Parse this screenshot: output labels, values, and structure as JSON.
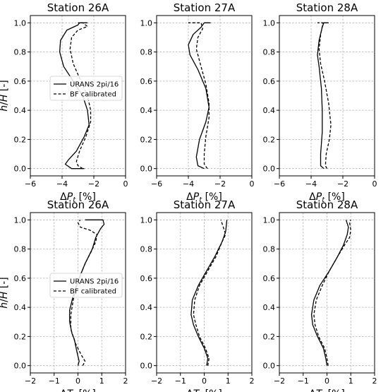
{
  "chart_data": [
    {
      "type": "line",
      "title": "Station 26A",
      "xlabel": "ΔP_t [%]",
      "ylabel": "h/H [-]",
      "xlim": [
        -6,
        0
      ],
      "ylim": [
        -0.05,
        1.05
      ],
      "xticks": [
        -6,
        -4,
        -2,
        0
      ],
      "yticks": [
        0.0,
        0.2,
        0.4,
        0.6,
        0.8,
        1.0
      ],
      "grid": true,
      "legend": "center-left",
      "series": [
        {
          "name": "URANS 2pi/16",
          "style": "solid",
          "points": [
            [
              -2.6,
              0.0
            ],
            [
              -3.4,
              0.0
            ],
            [
              -3.8,
              0.03
            ],
            [
              -3.6,
              0.06
            ],
            [
              -3.1,
              0.12
            ],
            [
              -2.6,
              0.22
            ],
            [
              -2.3,
              0.3
            ],
            [
              -2.4,
              0.4
            ],
            [
              -2.7,
              0.5
            ],
            [
              -3.3,
              0.6
            ],
            [
              -3.9,
              0.7
            ],
            [
              -4.15,
              0.8
            ],
            [
              -4.1,
              0.88
            ],
            [
              -3.7,
              0.95
            ],
            [
              -3.0,
              0.985
            ],
            [
              -2.9,
              1.0
            ],
            [
              -2.4,
              1.0
            ]
          ]
        },
        {
          "name": "BF calibrated",
          "style": "dashed",
          "points": [
            [
              -2.7,
              0.0
            ],
            [
              -3.0,
              0.02
            ],
            [
              -3.1,
              0.05
            ],
            [
              -2.9,
              0.12
            ],
            [
              -2.5,
              0.22
            ],
            [
              -2.2,
              0.32
            ],
            [
              -2.2,
              0.4
            ],
            [
              -2.4,
              0.5
            ],
            [
              -2.9,
              0.62
            ],
            [
              -3.3,
              0.72
            ],
            [
              -3.5,
              0.82
            ],
            [
              -3.4,
              0.9
            ],
            [
              -3.0,
              0.95
            ],
            [
              -2.4,
              0.975
            ],
            [
              -2.7,
              1.0
            ],
            [
              -3.0,
              1.0
            ]
          ]
        }
      ]
    },
    {
      "type": "line",
      "title": "Station 27A",
      "xlabel": "ΔP_t [%]",
      "ylabel": "",
      "xlim": [
        -6,
        0
      ],
      "ylim": [
        -0.05,
        1.05
      ],
      "xticks": [
        -6,
        -4,
        -2,
        0
      ],
      "yticks": [
        0.0,
        0.2,
        0.4,
        0.6,
        0.8,
        1.0
      ],
      "grid": true,
      "legend": "",
      "series": [
        {
          "name": "",
          "style": "solid",
          "points": [
            [
              -3.0,
              0.0
            ],
            [
              -3.4,
              0.02
            ],
            [
              -3.5,
              0.08
            ],
            [
              -3.3,
              0.2
            ],
            [
              -2.9,
              0.32
            ],
            [
              -2.7,
              0.42
            ],
            [
              -2.9,
              0.55
            ],
            [
              -3.4,
              0.68
            ],
            [
              -3.9,
              0.78
            ],
            [
              -4.0,
              0.85
            ],
            [
              -3.7,
              0.92
            ],
            [
              -3.2,
              0.97
            ],
            [
              -3.0,
              1.0
            ],
            [
              -2.6,
              1.0
            ]
          ]
        },
        {
          "name": "",
          "style": "dashed",
          "points": [
            [
              -2.8,
              0.0
            ],
            [
              -3.0,
              0.03
            ],
            [
              -3.0,
              0.1
            ],
            [
              -2.9,
              0.22
            ],
            [
              -2.7,
              0.35
            ],
            [
              -2.7,
              0.45
            ],
            [
              -2.9,
              0.58
            ],
            [
              -3.2,
              0.7
            ],
            [
              -3.5,
              0.82
            ],
            [
              -3.4,
              0.9
            ],
            [
              -3.1,
              0.96
            ],
            [
              -3.2,
              1.0
            ],
            [
              -4.0,
              1.0
            ]
          ]
        }
      ]
    },
    {
      "type": "line",
      "title": "Station 28A",
      "xlabel": "ΔP_t [%]",
      "ylabel": "",
      "xlim": [
        -6,
        0
      ],
      "ylim": [
        -0.05,
        1.05
      ],
      "xticks": [
        -6,
        -4,
        -2,
        0
      ],
      "yticks": [
        0.0,
        0.2,
        0.4,
        0.6,
        0.8,
        1.0
      ],
      "grid": true,
      "legend": "",
      "series": [
        {
          "name": "",
          "style": "solid",
          "points": [
            [
              -3.2,
              0.0
            ],
            [
              -3.4,
              0.02
            ],
            [
              -3.4,
              0.1
            ],
            [
              -3.3,
              0.25
            ],
            [
              -3.3,
              0.4
            ],
            [
              -3.35,
              0.55
            ],
            [
              -3.5,
              0.7
            ],
            [
              -3.6,
              0.78
            ],
            [
              -3.5,
              0.88
            ],
            [
              -3.3,
              0.97
            ],
            [
              -3.2,
              1.0
            ],
            [
              -2.9,
              1.0
            ]
          ]
        },
        {
          "name": "",
          "style": "dashed",
          "points": [
            [
              -3.0,
              0.0
            ],
            [
              -3.1,
              0.02
            ],
            [
              -3.05,
              0.1
            ],
            [
              -2.85,
              0.2
            ],
            [
              -2.75,
              0.3
            ],
            [
              -2.9,
              0.45
            ],
            [
              -3.15,
              0.6
            ],
            [
              -3.4,
              0.72
            ],
            [
              -3.5,
              0.82
            ],
            [
              -3.4,
              0.92
            ],
            [
              -3.25,
              1.0
            ],
            [
              -3.6,
              1.0
            ]
          ]
        }
      ]
    },
    {
      "type": "line",
      "title": "Station 26A",
      "xlabel": "ΔT_t [%]",
      "ylabel": "h/H [-]",
      "xlim": [
        -2,
        2
      ],
      "ylim": [
        -0.05,
        1.05
      ],
      "xticks": [
        -2,
        -1,
        0,
        1,
        2
      ],
      "yticks": [
        0.0,
        0.2,
        0.4,
        0.6,
        0.8,
        1.0
      ],
      "grid": true,
      "legend": "center-left",
      "series": [
        {
          "name": "URANS 2pi/16",
          "style": "solid",
          "points": [
            [
              0.0,
              0.0
            ],
            [
              0.05,
              0.03
            ],
            [
              -0.05,
              0.1
            ],
            [
              -0.15,
              0.18
            ],
            [
              -0.25,
              0.22
            ],
            [
              -0.35,
              0.3
            ],
            [
              -0.35,
              0.38
            ],
            [
              -0.2,
              0.48
            ],
            [
              0.0,
              0.58
            ],
            [
              0.3,
              0.7
            ],
            [
              0.6,
              0.8
            ],
            [
              0.75,
              0.88
            ],
            [
              0.95,
              0.94
            ],
            [
              1.1,
              0.97
            ],
            [
              1.05,
              1.0
            ],
            [
              0.3,
              1.0
            ]
          ]
        },
        {
          "name": "BF calibrated",
          "style": "dashed",
          "points": [
            [
              0.2,
              0.0
            ],
            [
              0.3,
              0.03
            ],
            [
              0.15,
              0.07
            ],
            [
              -0.1,
              0.15
            ],
            [
              -0.3,
              0.25
            ],
            [
              -0.3,
              0.35
            ],
            [
              -0.2,
              0.45
            ],
            [
              -0.05,
              0.55
            ],
            [
              0.1,
              0.62
            ],
            [
              0.3,
              0.7
            ],
            [
              0.55,
              0.78
            ],
            [
              0.75,
              0.85
            ],
            [
              0.8,
              0.9
            ],
            [
              0.5,
              0.93
            ],
            [
              0.1,
              0.95
            ],
            [
              0.0,
              0.98
            ],
            [
              0.1,
              1.0
            ]
          ]
        }
      ]
    },
    {
      "type": "line",
      "title": "Station 27A",
      "xlabel": "ΔT_t [%]",
      "ylabel": "",
      "xlim": [
        -2,
        2
      ],
      "ylim": [
        -0.05,
        1.05
      ],
      "xticks": [
        -2,
        -1,
        0,
        1,
        2
      ],
      "yticks": [
        0.0,
        0.2,
        0.4,
        0.6,
        0.8,
        1.0
      ],
      "grid": true,
      "legend": "",
      "series": [
        {
          "name": "",
          "style": "solid",
          "points": [
            [
              0.1,
              0.0
            ],
            [
              0.15,
              0.05
            ],
            [
              0.0,
              0.12
            ],
            [
              -0.25,
              0.2
            ],
            [
              -0.45,
              0.28
            ],
            [
              -0.55,
              0.35
            ],
            [
              -0.5,
              0.45
            ],
            [
              -0.25,
              0.55
            ],
            [
              0.1,
              0.65
            ],
            [
              0.45,
              0.75
            ],
            [
              0.75,
              0.85
            ],
            [
              0.9,
              0.92
            ],
            [
              0.95,
              1.0
            ]
          ]
        },
        {
          "name": "",
          "style": "dashed",
          "points": [
            [
              0.15,
              0.0
            ],
            [
              0.2,
              0.05
            ],
            [
              0.05,
              0.12
            ],
            [
              -0.2,
              0.2
            ],
            [
              -0.35,
              0.28
            ],
            [
              -0.45,
              0.35
            ],
            [
              -0.4,
              0.45
            ],
            [
              -0.2,
              0.55
            ],
            [
              0.15,
              0.65
            ],
            [
              0.5,
              0.75
            ],
            [
              0.75,
              0.85
            ],
            [
              0.9,
              0.9
            ],
            [
              0.8,
              0.95
            ],
            [
              0.7,
              1.0
            ]
          ]
        }
      ]
    },
    {
      "type": "line",
      "title": "Station 28A",
      "xlabel": "ΔT_t [%]",
      "ylabel": "",
      "xlim": [
        -2,
        2
      ],
      "ylim": [
        -0.05,
        1.05
      ],
      "xticks": [
        -2,
        -1,
        0,
        1,
        2
      ],
      "yticks": [
        0.0,
        0.2,
        0.4,
        0.6,
        0.8,
        1.0
      ],
      "grid": true,
      "legend": "",
      "series": [
        {
          "name": "",
          "style": "solid",
          "points": [
            [
              0.0,
              0.0
            ],
            [
              -0.05,
              0.05
            ],
            [
              -0.15,
              0.12
            ],
            [
              -0.4,
              0.2
            ],
            [
              -0.6,
              0.28
            ],
            [
              -0.65,
              0.35
            ],
            [
              -0.55,
              0.45
            ],
            [
              -0.3,
              0.55
            ],
            [
              0.1,
              0.65
            ],
            [
              0.45,
              0.75
            ],
            [
              0.7,
              0.83
            ],
            [
              0.85,
              0.9
            ],
            [
              0.9,
              0.95
            ],
            [
              0.8,
              1.0
            ]
          ]
        },
        {
          "name": "",
          "style": "dashed",
          "points": [
            [
              0.05,
              0.0
            ],
            [
              0.0,
              0.05
            ],
            [
              -0.1,
              0.12
            ],
            [
              -0.35,
              0.2
            ],
            [
              -0.5,
              0.28
            ],
            [
              -0.55,
              0.35
            ],
            [
              -0.45,
              0.45
            ],
            [
              -0.2,
              0.55
            ],
            [
              0.1,
              0.65
            ],
            [
              0.45,
              0.75
            ],
            [
              0.75,
              0.83
            ],
            [
              0.95,
              0.88
            ],
            [
              1.0,
              0.93
            ],
            [
              0.95,
              0.98
            ],
            [
              1.0,
              1.0
            ]
          ]
        }
      ]
    }
  ]
}
